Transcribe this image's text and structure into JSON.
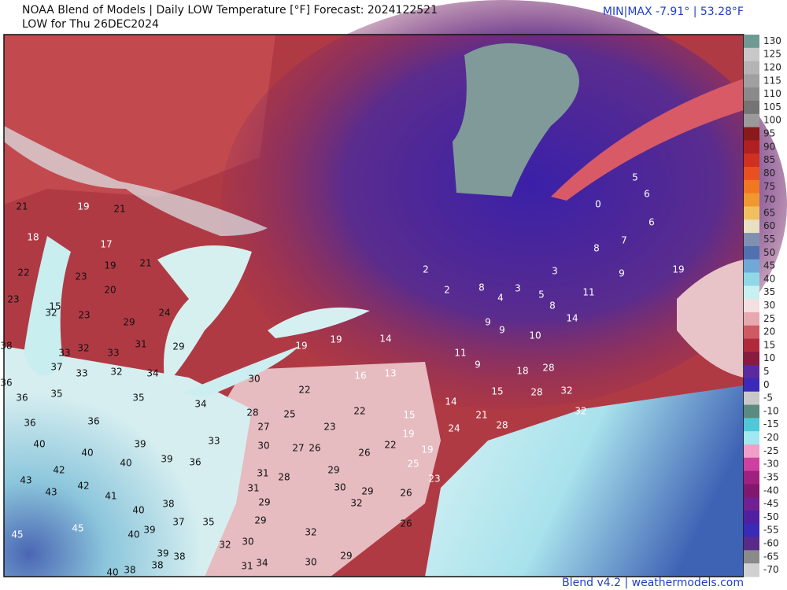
{
  "header": {
    "title": "NOAA Blend of Models | Daily LOW Temperature [°F] Forecast: 2024122521",
    "subtitle": "LOW for Thu 26DEC2024",
    "minmax": "MIN|MAX -7.91° | 53.28°F"
  },
  "colorbar": {
    "labels": [
      "130",
      "125",
      "120",
      "115",
      "110",
      "105",
      "100",
      "95",
      "90",
      "85",
      "80",
      "75",
      "70",
      "65",
      "60",
      "55",
      "50",
      "45",
      "40",
      "35",
      "30",
      "25",
      "20",
      "15",
      "10",
      "5",
      "0",
      "-5",
      "-10",
      "-15",
      "-20",
      "-25",
      "-30",
      "-35",
      "-40",
      "-45",
      "-50",
      "-55",
      "-60",
      "-65",
      "-70"
    ]
  },
  "stations": [
    "21",
    "19",
    "21",
    "18",
    "17",
    "19",
    "21",
    "22",
    "23",
    "20",
    "23",
    "15",
    "32",
    "23",
    "24",
    "29",
    "38",
    "31",
    "29",
    "33",
    "32",
    "33",
    "37",
    "33",
    "32",
    "34",
    "36",
    "36",
    "35",
    "35",
    "34",
    "30",
    "22",
    "28",
    "25",
    "22",
    "36",
    "36",
    "27",
    "23",
    "33",
    "40",
    "40",
    "39",
    "39",
    "36",
    "40",
    "30",
    "27",
    "26",
    "26",
    "22",
    "42",
    "43",
    "42",
    "43",
    "41",
    "31",
    "28",
    "29",
    "31",
    "30",
    "29",
    "29",
    "40",
    "38",
    "37",
    "35",
    "29",
    "32",
    "26",
    "26",
    "45",
    "45",
    "40",
    "39",
    "39",
    "38",
    "38",
    "32",
    "30",
    "32",
    "31",
    "34",
    "30",
    "29",
    "40",
    "38",
    "19",
    "19",
    "14",
    "16",
    "13",
    "11",
    "9",
    "18",
    "28",
    "32",
    "15",
    "28",
    "21",
    "15",
    "14",
    "19",
    "24",
    "28",
    "32",
    "19",
    "25",
    "23",
    "2",
    "2",
    "8",
    "4",
    "3",
    "5",
    "3",
    "8",
    "9",
    "9",
    "10",
    "14",
    "11",
    "9",
    "8",
    "7",
    "6",
    "6",
    "5",
    "0",
    "19"
  ],
  "footer": "Blend v4.2 | weathermodels.com"
}
